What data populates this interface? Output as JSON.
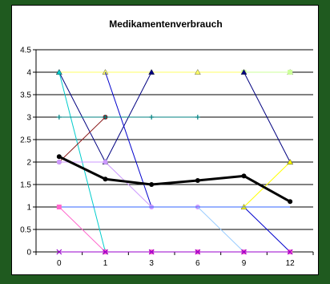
{
  "chart_data": {
    "type": "line",
    "title": "Medikamentenverbrauch",
    "xlabel": "",
    "ylabel": "",
    "categories": [
      "0",
      "1",
      "3",
      "6",
      "9",
      "12"
    ],
    "ylim": [
      0,
      4.5
    ],
    "yticks": [
      "0",
      "0.5",
      "1",
      "1.5",
      "2",
      "2.5",
      "3",
      "3.5",
      "4",
      "4.5"
    ],
    "grid": "horizontal",
    "legend": "none",
    "series": [
      {
        "color": "#ffff66",
        "marker": "triangle",
        "values": [
          4,
          4,
          4,
          4,
          4,
          4
        ]
      },
      {
        "color": "#ccff99",
        "marker": "square",
        "values": [
          null,
          null,
          null,
          null,
          4,
          4
        ]
      },
      {
        "color": "#000080",
        "marker": "triangle",
        "values": [
          4,
          2,
          4,
          null,
          null,
          null
        ]
      },
      {
        "color": "#000080",
        "marker": "triangle",
        "values": [
          null,
          null,
          null,
          null,
          4,
          2
        ]
      },
      {
        "color": "#0000cc",
        "marker": "none",
        "values": [
          null,
          4,
          1,
          1,
          1,
          0
        ]
      },
      {
        "color": "#00cccc",
        "marker": "triangle",
        "values": [
          4,
          0,
          null,
          null,
          null,
          null
        ]
      },
      {
        "color": "#8b1a1a",
        "marker": "circle",
        "values": [
          2,
          3,
          null,
          null,
          null,
          null
        ]
      },
      {
        "color": "#008080",
        "marker": "plus",
        "values": [
          3,
          3,
          3,
          3,
          null,
          null
        ]
      },
      {
        "color": "#cc99ff",
        "marker": "circle",
        "values": [
          2,
          2,
          1,
          1,
          null,
          null
        ]
      },
      {
        "color": "#ffff00",
        "marker": "triangle",
        "values": [
          null,
          null,
          null,
          null,
          1,
          2
        ]
      },
      {
        "color": "#3366ff",
        "marker": "none",
        "values": [
          1,
          1,
          1,
          1,
          1,
          1
        ]
      },
      {
        "color": "#99ccff",
        "marker": "none",
        "values": [
          null,
          null,
          null,
          1,
          0,
          0
        ]
      },
      {
        "color": "#ff66cc",
        "marker": "square",
        "values": [
          1,
          0,
          0,
          0,
          0,
          0
        ]
      },
      {
        "color": "#9900cc",
        "marker": "x",
        "values": [
          0,
          0,
          0,
          0,
          0,
          0
        ]
      },
      {
        "color": "#000000",
        "marker": "circle",
        "bold": true,
        "values": [
          2.12,
          1.62,
          1.5,
          1.59,
          1.69,
          1.12
        ]
      }
    ]
  }
}
